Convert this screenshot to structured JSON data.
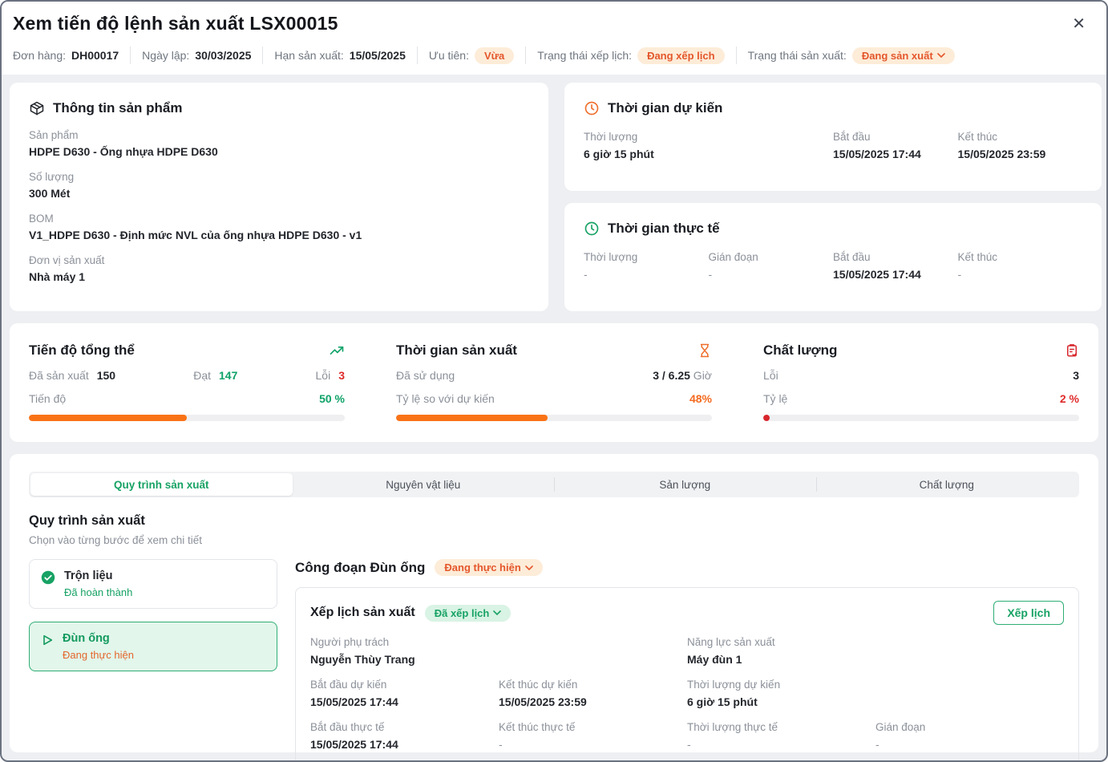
{
  "dialog": {
    "title": "Xem tiến độ lệnh sản xuất LSX00015",
    "close_glyph": "✕"
  },
  "colors": {
    "accent_orange": "#f97316",
    "accent_green": "#17a264",
    "accent_red": "#e02b2b",
    "badge_orange_bg": "#fdecd8",
    "badge_green_bg": "#d9f3e4"
  },
  "meta": {
    "order": {
      "label": "Đơn hàng:",
      "value": "DH00017"
    },
    "created": {
      "label": "Ngày lập:",
      "value": "30/03/2025"
    },
    "deadline": {
      "label": "Hạn sản xuất:",
      "value": "15/05/2025"
    },
    "priority": {
      "label": "Ưu tiên:",
      "badge": "Vừa"
    },
    "schedule_status": {
      "label": "Trạng thái xếp lịch:",
      "badge": "Đang xếp lịch"
    },
    "production_status": {
      "label": "Trạng thái sản xuất:",
      "badge": "Đang sản xuất"
    }
  },
  "product": {
    "title": "Thông tin sản phẩm",
    "fields": [
      {
        "label": "Sản phẩm",
        "value": "HDPE D630 - Ống nhựa HDPE D630"
      },
      {
        "label": "Số lượng",
        "value": "300 Mét"
      },
      {
        "label": "BOM",
        "value": "V1_HDPE D630 - Định mức NVL của ống nhựa HDPE D630 - v1"
      },
      {
        "label": "Đơn vị sản xuất",
        "value": "Nhà máy 1"
      }
    ]
  },
  "planned_time": {
    "title": "Thời gian dự kiến",
    "duration": {
      "label": "Thời lượng",
      "value": "6 giờ 15 phút"
    },
    "start": {
      "label": "Bắt đầu",
      "value": "15/05/2025 17:44"
    },
    "end": {
      "label": "Kết thúc",
      "value": "15/05/2025 23:59"
    }
  },
  "actual_time": {
    "title": "Thời gian thực tế",
    "duration": {
      "label": "Thời lượng",
      "value": "-"
    },
    "interruption": {
      "label": "Gián đoạn",
      "value": "-"
    },
    "start": {
      "label": "Bắt đầu",
      "value": "15/05/2025 17:44"
    },
    "end": {
      "label": "Kết thúc",
      "value": "-"
    }
  },
  "stats": {
    "progress": {
      "title": "Tiến độ tổng thể",
      "produced_label": "Đã sản xuất",
      "produced": "150",
      "passed_label": "Đạt",
      "passed": "147",
      "error_label": "Lỗi",
      "errors": "3",
      "bar_label": "Tiến độ",
      "percent": "50 %",
      "bar_pct": 50
    },
    "time": {
      "title": "Thời gian sản xuất",
      "used_label": "Đã sử dụng",
      "used": "3 / 6.25",
      "unit": " Giờ",
      "ratio_label": "Tỷ lệ so với dự kiến",
      "percent": "48%",
      "bar_pct": 48
    },
    "quality": {
      "title": "Chất lượng",
      "error_label": "Lỗi",
      "errors": "3",
      "ratio_label": "Tỷ lệ",
      "percent": "2 %",
      "bar_pct": 2
    }
  },
  "tabs": [
    {
      "label": "Quy trình sản xuất",
      "active": true
    },
    {
      "label": "Nguyên vật liệu",
      "active": false
    },
    {
      "label": "Sản lượng",
      "active": false
    },
    {
      "label": "Chất lượng",
      "active": false
    }
  ],
  "process": {
    "heading": "Quy trình sản xuất",
    "subtitle": "Chọn vào từng bước để xem chi tiết",
    "steps": [
      {
        "name": "Trộn liệu",
        "status": "Đã hoàn thành",
        "state": "done"
      },
      {
        "name": "Đùn ống",
        "status": "Đang thực hiện",
        "state": "current"
      }
    ],
    "stage_title": "Công đoạn Đùn ống",
    "stage_badge": "Đang thực hiện"
  },
  "schedule": {
    "title": "Xếp lịch sản xuất",
    "badge": "Đã xếp lịch",
    "button": "Xếp lịch",
    "assignee": {
      "label": "Người phụ trách",
      "value": "Nguyễn Thùy Trang"
    },
    "capacity": {
      "label": "Năng lực sản xuất",
      "value": "Máy đùn 1"
    },
    "planned_start": {
      "label": "Bắt đầu dự kiến",
      "value": "15/05/2025 17:44"
    },
    "planned_end": {
      "label": "Kết thúc dự kiến",
      "value": "15/05/2025 23:59"
    },
    "planned_duration": {
      "label": "Thời lượng dự kiến",
      "value": "6 giờ 15 phút"
    },
    "actual_start": {
      "label": "Bắt đầu thực tế",
      "value": "15/05/2025 17:44"
    },
    "actual_end": {
      "label": "Kết thúc thực tế",
      "value": "-"
    },
    "actual_duration": {
      "label": "Thời lượng thực tế",
      "value": "-"
    },
    "interruption": {
      "label": "Gián đoạn",
      "value": "-"
    }
  }
}
